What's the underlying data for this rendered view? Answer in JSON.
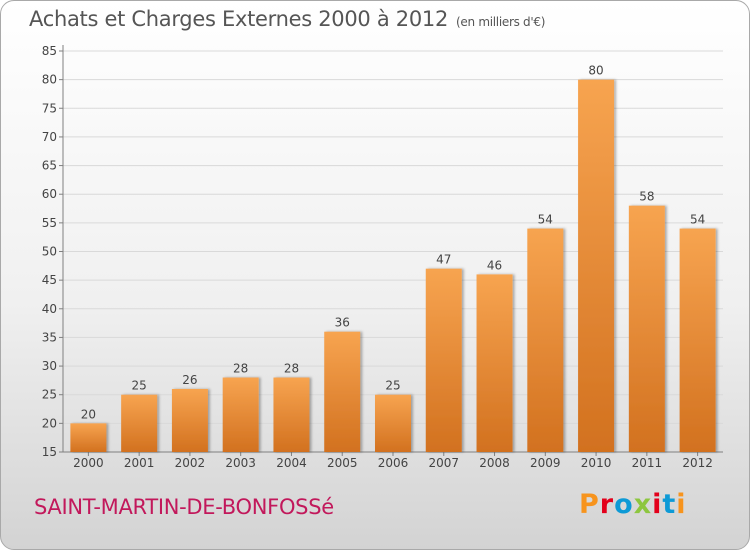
{
  "header": {
    "title": "Achats et Charges Externes 2000 à 2012",
    "subtitle": "(en milliers d'€)"
  },
  "footer": {
    "commune": "SAINT-MARTIN-DE-BONFOSSé",
    "logo": "Proxiti",
    "logo_colors": [
      "#f7941d",
      "#e3001b",
      "#0d9ad6",
      "#8dc63f",
      "#e3001b",
      "#0d9ad6",
      "#f7941d"
    ]
  },
  "colors": {
    "bar_top": "#f7a450",
    "bar_bottom": "#d2711f",
    "axis": "#808080",
    "grid": "#d9d9d9"
  },
  "chart_data": {
    "type": "bar",
    "categories": [
      "2000",
      "2001",
      "2002",
      "2003",
      "2004",
      "2005",
      "2006",
      "2007",
      "2008",
      "2009",
      "2010",
      "2011",
      "2012"
    ],
    "values": [
      20,
      25,
      26,
      28,
      28,
      36,
      25,
      47,
      46,
      54,
      80,
      58,
      54
    ],
    "data_labels": [
      "20",
      "25",
      "26",
      "28",
      "28",
      "36",
      "25",
      "47",
      "46",
      "54",
      "80",
      "58",
      "54"
    ],
    "ylim": [
      15,
      85
    ],
    "yticks": [
      "15",
      "20",
      "25",
      "30",
      "35",
      "40",
      "45",
      "50",
      "55",
      "60",
      "65",
      "70",
      "75",
      "80",
      "85"
    ],
    "grid": true,
    "legend": "none"
  }
}
